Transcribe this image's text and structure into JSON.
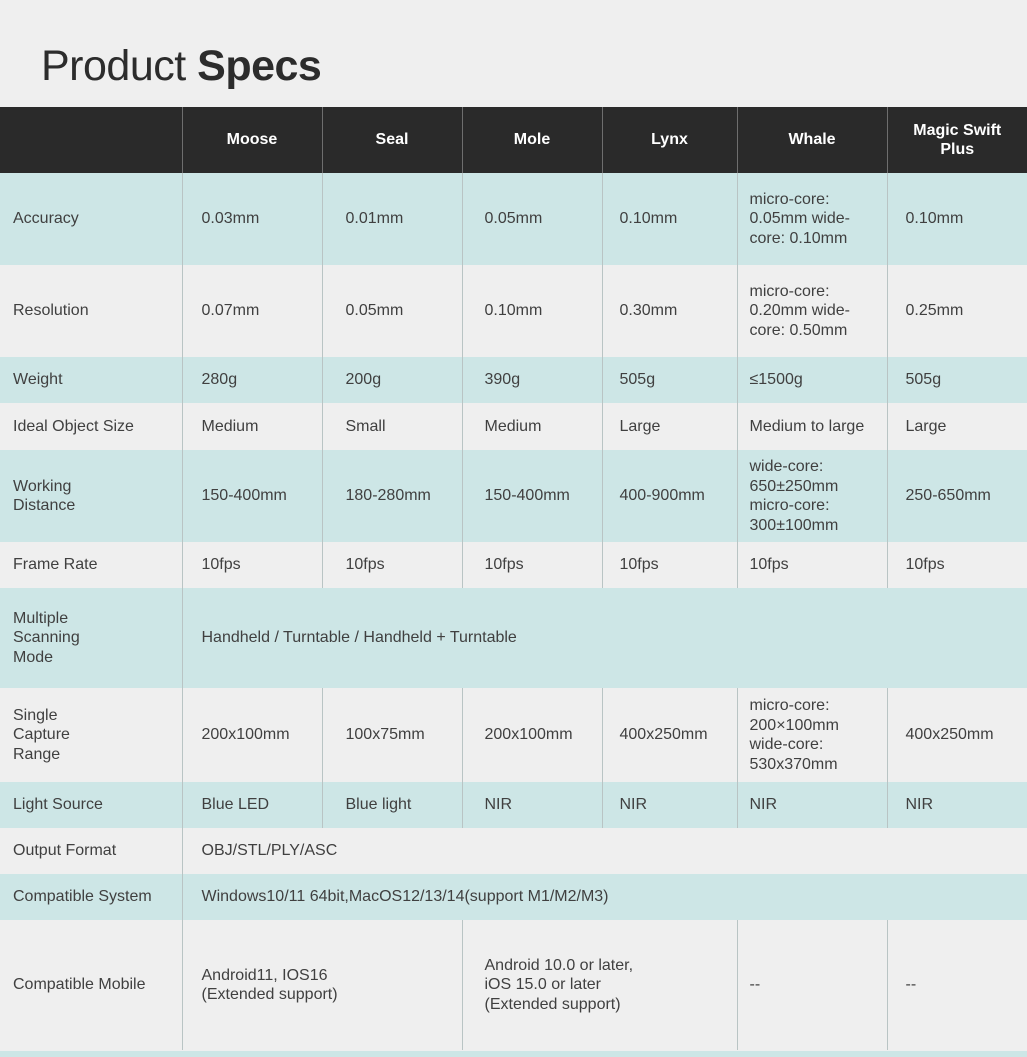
{
  "title": {
    "light": "Product",
    "bold": "Specs"
  },
  "header": {
    "empty": "",
    "columns": [
      "Moose",
      "Seal",
      "Mole",
      "Lynx",
      "Whale",
      "Magic Swift Plus"
    ]
  },
  "rows": {
    "accuracy": {
      "label": "Accuracy",
      "values": [
        "0.03mm",
        "0.01mm",
        "0.05mm",
        "0.10mm",
        "micro-core: 0.05mm wide-core: 0.10mm",
        "0.10mm"
      ]
    },
    "resolution": {
      "label": "Resolution",
      "values": [
        "0.07mm",
        "0.05mm",
        "0.10mm",
        "0.30mm",
        "micro-core: 0.20mm wide-core: 0.50mm",
        "0.25mm"
      ]
    },
    "weight": {
      "label": "Weight",
      "values": [
        "280g",
        "200g",
        "390g",
        "505g",
        "≤1500g",
        "505g"
      ]
    },
    "ideal_object_size": {
      "label": "Ideal Object Size",
      "values": [
        "Medium",
        "Small",
        "Medium",
        "Large",
        "Medium to large",
        "Large"
      ]
    },
    "working_distance": {
      "label": "Working Distance",
      "values": [
        "150-400mm",
        "180-280mm",
        "150-400mm",
        "400-900mm",
        "wide-core: 650±250mm micro-core: 300±100mm",
        "250-650mm"
      ]
    },
    "frame_rate": {
      "label": "Frame Rate",
      "values": [
        "10fps",
        "10fps",
        "10fps",
        "10fps",
        "10fps",
        "10fps"
      ]
    },
    "multiple_scanning_mode": {
      "label": "Multiple Scanning Mode",
      "value": "Handheld / Turntable / Handheld + Turntable"
    },
    "single_capture_range": {
      "label": "Single Capture Range",
      "values": [
        "200x100mm",
        "100x75mm",
        "200x100mm",
        "400x250mm",
        "micro-core: 200×100mm wide-core: 530x370mm",
        "400x250mm"
      ]
    },
    "light_source": {
      "label": "Light Source",
      "values": [
        "Blue LED",
        "Blue light",
        "NIR",
        "NIR",
        "NIR",
        "NIR"
      ]
    },
    "output_format": {
      "label": "Output Format",
      "value": "OBJ/STL/PLY/ASC"
    },
    "compatible_system": {
      "label": "Compatible System",
      "value": "Windows10/11 64bit,MacOS12/13/14(support M1/M2/M3)"
    },
    "compatible_mobile": {
      "label": "Compatible Mobile",
      "values": [
        "Android11, IOS16 (Extended support)",
        "Android 10.0 or later, iOS 15.0 or later (Extended support)",
        "--",
        "--"
      ]
    }
  },
  "colors": {
    "header_bg": "#2a2a2a",
    "teal_row": "#cde6e6",
    "grey_row": "#efefef"
  }
}
